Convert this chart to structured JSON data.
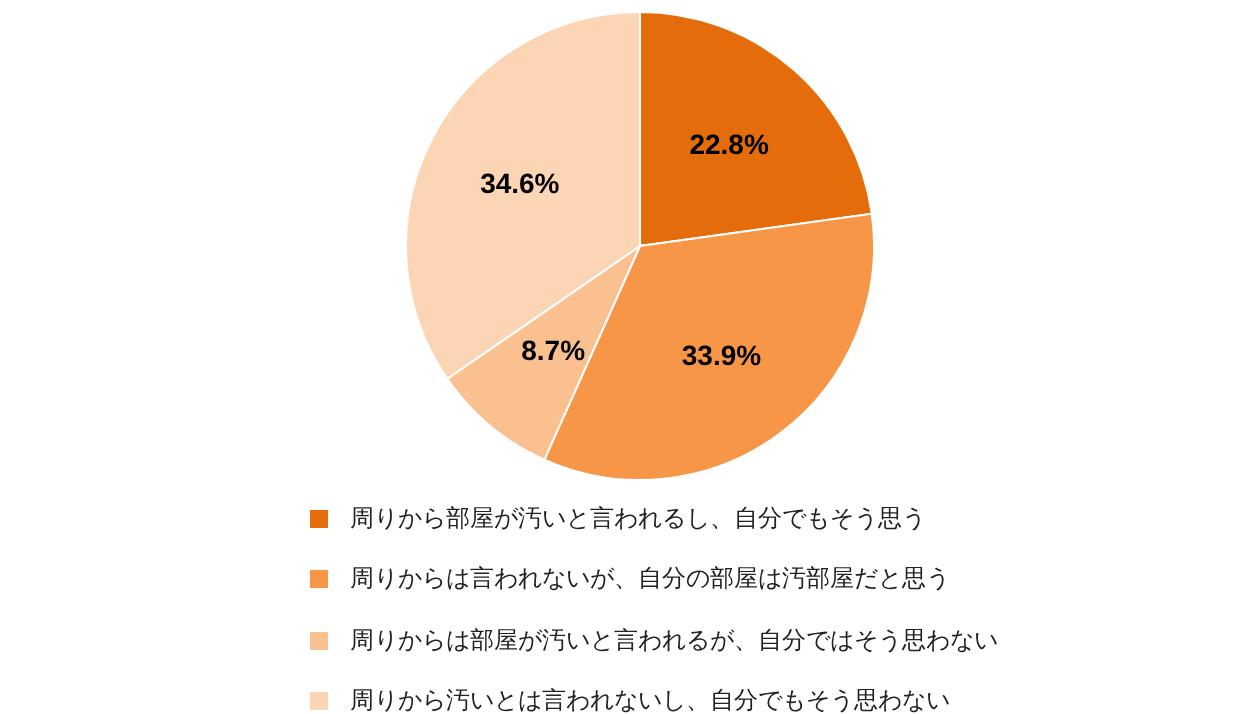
{
  "chart_data": {
    "type": "pie",
    "categories": [
      "周りから部屋が汚いと言われるし、自分でもそう思う",
      "周りからは言われないが、自分の部屋は汚部屋だと思う",
      "周りからは部屋が汚いと言われるが、自分ではそう思わない",
      "周りから汚いとは言われないし、自分でもそう思わない"
    ],
    "values": [
      22.8,
      33.9,
      8.7,
      34.6
    ],
    "value_labels": [
      "22.8%",
      "33.9%",
      "8.7%",
      "34.6%"
    ],
    "colors": [
      "#e46c0a",
      "#f79646",
      "#fac090",
      "#fcd5b5"
    ],
    "legend": "bottom"
  }
}
